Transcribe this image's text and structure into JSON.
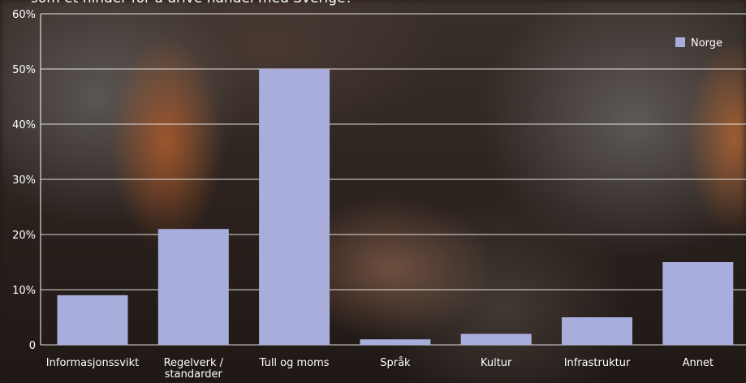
{
  "title": "som et hinder for å drive handel med Sverige?",
  "chart_data": {
    "type": "bar",
    "categories": [
      "Informasjonssvikt",
      "Regelverk / standarder",
      "Tull og moms",
      "Språk",
      "Kultur",
      "Infrastruktur",
      "Annet"
    ],
    "category_lines": [
      [
        "Informasjonssvikt"
      ],
      [
        "Regelverk /",
        "standarder"
      ],
      [
        "Tull og moms"
      ],
      [
        "Språk"
      ],
      [
        "Kultur"
      ],
      [
        "Infrastruktur"
      ],
      [
        "Annet"
      ]
    ],
    "series": [
      {
        "name": "Norge",
        "values": [
          9,
          21,
          50,
          1,
          2,
          5,
          15
        ],
        "color": "#a9addb"
      }
    ],
    "y_ticks": [
      "0",
      "10%",
      "20%",
      "30%",
      "40%",
      "50%",
      "60%"
    ],
    "y_tick_values": [
      0,
      10,
      20,
      30,
      40,
      50,
      60
    ],
    "ylim": [
      0,
      60
    ],
    "grid": true,
    "legend_position": "top-right"
  }
}
